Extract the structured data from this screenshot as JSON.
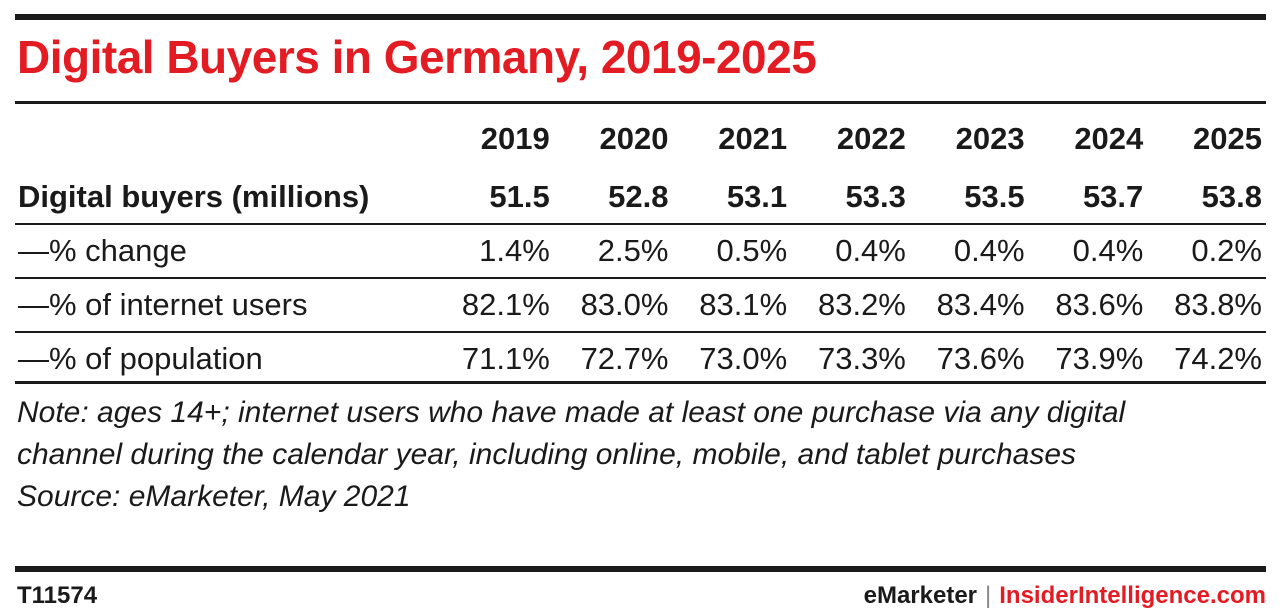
{
  "colors": {
    "title": "#e31b23",
    "text": "#1a1a1a",
    "brand_accent": "#e31b23"
  },
  "chart_data": {
    "type": "table",
    "title": "Digital Buyers in Germany, 2019-2025",
    "columns": [
      "2019",
      "2020",
      "2021",
      "2022",
      "2023",
      "2024",
      "2025"
    ],
    "rows": [
      {
        "label": "Digital buyers (millions)",
        "bold": true,
        "values": [
          "51.5",
          "52.8",
          "53.1",
          "53.3",
          "53.5",
          "53.7",
          "53.8"
        ]
      },
      {
        "label": "—% change",
        "bold": false,
        "values": [
          "1.4%",
          "2.5%",
          "0.5%",
          "0.4%",
          "0.4%",
          "0.4%",
          "0.2%"
        ]
      },
      {
        "label": "—% of internet users",
        "bold": false,
        "values": [
          "82.1%",
          "83.0%",
          "83.1%",
          "83.2%",
          "83.4%",
          "83.6%",
          "83.8%"
        ]
      },
      {
        "label": "—% of population",
        "bold": false,
        "values": [
          "71.1%",
          "72.7%",
          "73.0%",
          "73.3%",
          "73.6%",
          "73.9%",
          "74.2%"
        ]
      }
    ],
    "note": "Note: ages 14+; internet users who have made at least one purchase via any digital channel during the calendar year, including online, mobile, and tablet purchases",
    "source": "Source: eMarketer, May 2021"
  },
  "footer": {
    "chart_id": "T11574",
    "brand_left": "eMarketer",
    "separator": "|",
    "brand_right": "InsiderIntelligence.com"
  }
}
